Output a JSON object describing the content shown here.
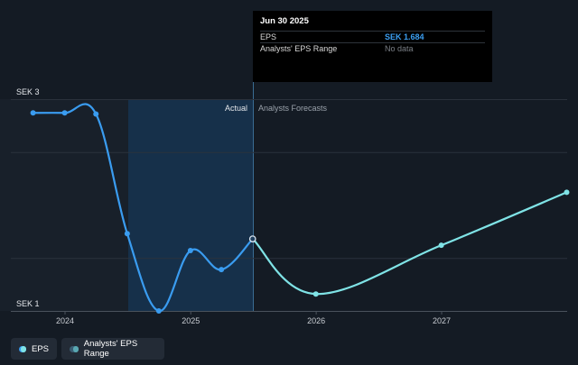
{
  "tooltip": {
    "date": "Jun 30 2025",
    "rows": [
      {
        "label": "EPS",
        "value": "SEK 1.684"
      },
      {
        "label": "Analysts' EPS Range",
        "value": "No data"
      }
    ]
  },
  "legend": {
    "eps_label": "EPS",
    "range_label": "Analysts' EPS Range"
  },
  "colors": {
    "background": "#141b24",
    "actual_line": "#3a9cf0",
    "forecast_line": "#7fe3e6",
    "highlight_band": "#16304a",
    "tooltip_value": "#3b9ff2"
  },
  "chart_data": {
    "type": "line",
    "title": "",
    "xlabel": "",
    "ylabel": "",
    "y_tick_labels": [
      "SEK 3",
      "SEK 1"
    ],
    "y_ticks": [
      3,
      1
    ],
    "ylim": [
      1,
      3
    ],
    "x_tick_labels": [
      "2024",
      "2025",
      "2026",
      "2027"
    ],
    "x_ticks": [
      "2024-01-01",
      "2025-01-01",
      "2026-01-01",
      "2027-01-01"
    ],
    "xlim": [
      "2023-07-01",
      "2027-12-31"
    ],
    "divider_labels": {
      "left": "Actual",
      "right": "Analysts Forecasts"
    },
    "grid": true,
    "series": [
      {
        "name": "EPS",
        "segment": "actual",
        "x": [
          "2023-09-30",
          "2023-12-31",
          "2024-03-31",
          "2024-06-30",
          "2024-09-30",
          "2024-12-31",
          "2025-03-31",
          "2025-06-30"
        ],
        "values": [
          2.87,
          2.87,
          2.86,
          1.73,
          1.0,
          1.57,
          1.39,
          1.68
        ]
      },
      {
        "name": "EPS",
        "segment": "forecast",
        "x": [
          "2025-06-30",
          "2025-12-31",
          "2026-12-31",
          "2027-12-31"
        ],
        "values": [
          1.68,
          1.16,
          1.62,
          2.12
        ]
      }
    ]
  }
}
